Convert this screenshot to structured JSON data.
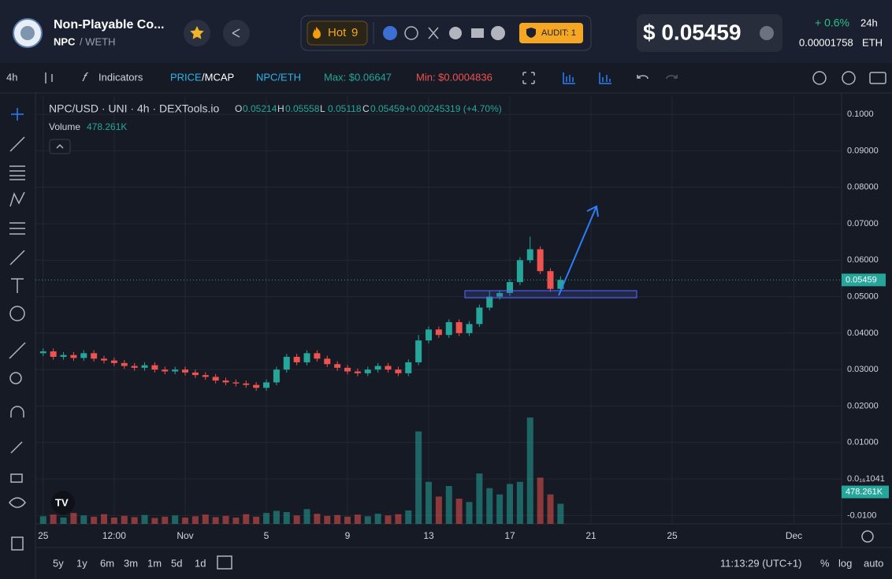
{
  "header": {
    "name": "Non-Playable Co...",
    "symbol": "NPC",
    "quote": "/ WETH",
    "hot": "Hot",
    "hot_rank": "9",
    "audit": "AUDIT: 1",
    "price": "$ 0.05459",
    "change": "+ 0.6%",
    "period": "24h",
    "eth_price": "0.00001758",
    "eth_unit": "ETH"
  },
  "toolbar": {
    "interval": "4h",
    "indicators": "Indicators",
    "price": "PRICE",
    "mcap": "/MCAP",
    "pair": "NPC/ETH",
    "max": "Max: $0.06647",
    "min": "Min: $0.0004836"
  },
  "legend": {
    "title": "NPC/USD · UNI · 4h · DEXTools.io",
    "o": "O",
    "h": "H",
    "l": "L",
    "c": "C",
    "change": "+0.00245319 (+4.70%)",
    "volume": "Volume"
  },
  "bottom": {
    "ranges": [
      "5y",
      "1y",
      "6m",
      "3m",
      "1m",
      "5d",
      "1d"
    ],
    "time": "11:13:29 (UTC+1)",
    "percent": "%",
    "log": "log",
    "auto": "auto"
  },
  "chart_data": {
    "type": "candlestick",
    "up_color": "#26a69a",
    "down_color": "#ef5350",
    "grid": true,
    "log_scale": false,
    "x": [
      -6,
      -5.5,
      -5,
      -4.5,
      -4,
      -3.5,
      -3,
      -2.5,
      -2,
      -1.5,
      -1,
      -0.5,
      0,
      0.5,
      1,
      1.5,
      2,
      2.5,
      3,
      3.5,
      4,
      4.5,
      5,
      5.5,
      6,
      6.5,
      7,
      7.5,
      8,
      8.5,
      9,
      9.5,
      10,
      10.5,
      11,
      11.5,
      12,
      12.5,
      13,
      13.5,
      14,
      14.5,
      15,
      15.5,
      16,
      16.5,
      17,
      17.5,
      18,
      18.5,
      19,
      19.5
    ],
    "open": [
      0.0345,
      0.035,
      0.0335,
      0.034,
      0.0332,
      0.0345,
      0.033,
      0.0325,
      0.0318,
      0.031,
      0.0305,
      0.0312,
      0.03,
      0.0295,
      0.03,
      0.0292,
      0.0285,
      0.028,
      0.027,
      0.0265,
      0.0262,
      0.0258,
      0.025,
      0.0265,
      0.03,
      0.0335,
      0.032,
      0.0345,
      0.033,
      0.0315,
      0.0305,
      0.0295,
      0.029,
      0.03,
      0.031,
      0.03,
      0.029,
      0.032,
      0.038,
      0.041,
      0.0395,
      0.043,
      0.04,
      0.0425,
      0.047,
      0.05,
      0.051,
      0.054,
      0.06,
      0.063,
      0.057,
      0.05214
    ],
    "high": [
      0.0358,
      0.0358,
      0.0348,
      0.0348,
      0.0353,
      0.0353,
      0.0338,
      0.0333,
      0.0326,
      0.0318,
      0.032,
      0.032,
      0.0308,
      0.0308,
      0.0308,
      0.03,
      0.0293,
      0.0288,
      0.0278,
      0.0273,
      0.027,
      0.0266,
      0.0273,
      0.0308,
      0.0343,
      0.0343,
      0.0353,
      0.0353,
      0.0338,
      0.0323,
      0.0313,
      0.0303,
      0.0308,
      0.0318,
      0.0318,
      0.0308,
      0.0328,
      0.0395,
      0.0418,
      0.0418,
      0.0438,
      0.0438,
      0.0433,
      0.0478,
      0.0515,
      0.0518,
      0.0548,
      0.0608,
      0.06647,
      0.0638,
      0.0578,
      0.05558
    ],
    "low": [
      0.0337,
      0.0327,
      0.0327,
      0.0324,
      0.0324,
      0.0322,
      0.0317,
      0.031,
      0.0302,
      0.0297,
      0.0297,
      0.0292,
      0.0287,
      0.0287,
      0.0284,
      0.0277,
      0.0272,
      0.0262,
      0.0257,
      0.0254,
      0.025,
      0.0242,
      0.0242,
      0.0257,
      0.0292,
      0.0312,
      0.0312,
      0.0322,
      0.0307,
      0.0297,
      0.0287,
      0.0282,
      0.0282,
      0.0292,
      0.0292,
      0.0282,
      0.0282,
      0.0312,
      0.0372,
      0.0387,
      0.0387,
      0.0392,
      0.0392,
      0.0417,
      0.0462,
      0.0492,
      0.0502,
      0.0532,
      0.0592,
      0.0562,
      0.0513,
      0.05118
    ],
    "close": [
      0.035,
      0.0335,
      0.034,
      0.0332,
      0.0345,
      0.033,
      0.0325,
      0.0318,
      0.031,
      0.0305,
      0.0312,
      0.03,
      0.0295,
      0.03,
      0.0292,
      0.0285,
      0.028,
      0.027,
      0.0265,
      0.0262,
      0.0258,
      0.025,
      0.0265,
      0.03,
      0.0335,
      0.032,
      0.0345,
      0.033,
      0.0315,
      0.0305,
      0.0295,
      0.029,
      0.03,
      0.031,
      0.03,
      0.029,
      0.032,
      0.038,
      0.041,
      0.0395,
      0.043,
      0.04,
      0.0425,
      0.047,
      0.05,
      0.051,
      0.054,
      0.06,
      0.063,
      0.057,
      0.05214,
      0.05459
    ],
    "volume": [
      180,
      220,
      150,
      260,
      200,
      170,
      230,
      150,
      190,
      160,
      210,
      140,
      170,
      200,
      150,
      180,
      220,
      160,
      190,
      150,
      230,
      170,
      260,
      310,
      280,
      200,
      350,
      240,
      190,
      210,
      170,
      220,
      180,
      240,
      200,
      230,
      320,
      2200,
      1000,
      650,
      900,
      600,
      520,
      1200,
      850,
      700,
      950,
      1000,
      2530,
      1100,
      700,
      478.261
    ],
    "volume_label": "478.261K",
    "volume_ylim": [
      0,
      3000
    ],
    "ylim": [
      -0.0123,
      0.105
    ],
    "yticks": [
      {
        "value": 0.1,
        "label": "0.1000"
      },
      {
        "value": 0.09,
        "label": "0.09000"
      },
      {
        "value": 0.08,
        "label": "0.08000"
      },
      {
        "value": 0.07,
        "label": "0.07000"
      },
      {
        "value": 0.06,
        "label": "0.06000"
      },
      {
        "value": 0.05,
        "label": "0.05000"
      },
      {
        "value": 0.04,
        "label": "0.04000"
      },
      {
        "value": 0.03,
        "label": "0.03000"
      },
      {
        "value": 0.02,
        "label": "0.02000"
      },
      {
        "value": 0.01,
        "label": "0.01000"
      },
      {
        "value": 1.041e-17,
        "label": "0.0₁₆1041"
      },
      {
        "value": -0.01,
        "label": "-0.0100"
      }
    ],
    "xlim": [
      -6.38,
      33.35
    ],
    "xticks": [
      {
        "value": -6,
        "label": "25"
      },
      {
        "value": -2.5,
        "label": "12:00"
      },
      {
        "value": 1,
        "label": "Nov"
      },
      5,
      9,
      13,
      17,
      21,
      25,
      {
        "value": 31,
        "label": "Dec"
      }
    ]
  }
}
